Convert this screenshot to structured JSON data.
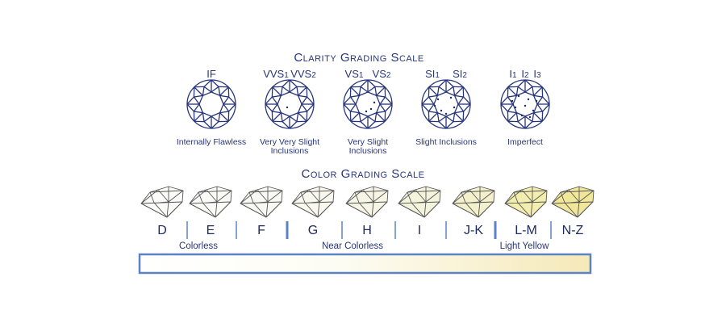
{
  "clarity": {
    "title": "Clarity Grading Scale",
    "grades": [
      {
        "labels": [
          {
            "text": "IF"
          }
        ],
        "description": [
          "Internally Flawless"
        ]
      },
      {
        "labels": [
          {
            "text": "VVS",
            "sub": "1"
          },
          {
            "text": "VVS",
            "sub": "2"
          }
        ],
        "description": [
          "Very Very Slight",
          "Inclusions"
        ]
      },
      {
        "labels": [
          {
            "text": "VS",
            "sub": "1"
          },
          {
            "text": "VS",
            "sub": "2"
          }
        ],
        "description": [
          "Very Slight",
          "Inclusions"
        ]
      },
      {
        "labels": [
          {
            "text": "SI",
            "sub": "1"
          },
          {
            "text": "SI",
            "sub": "2"
          }
        ],
        "description": [
          "Slight Inclusions"
        ]
      },
      {
        "labels": [
          {
            "text": "I",
            "sub": "1"
          },
          {
            "text": "I",
            "sub": "2"
          },
          {
            "text": "I",
            "sub": "3"
          }
        ],
        "description": [
          "Imperfect"
        ]
      }
    ]
  },
  "color": {
    "title": "Color Grading Scale",
    "grades": [
      {
        "label": "D",
        "color": "#fbfbf9"
      },
      {
        "label": "E",
        "color": "#fafaf6"
      },
      {
        "label": "F",
        "color": "#f9f9f3"
      },
      {
        "label": "G",
        "color": "#f8f8ee"
      },
      {
        "label": "H",
        "color": "#f6f5e6"
      },
      {
        "label": "I",
        "color": "#f4f3dc"
      },
      {
        "label": "J-K",
        "color": "#f3f0cc"
      },
      {
        "label": "L-M",
        "color": "#f3eeb0"
      },
      {
        "label": "N-Z",
        "color": "#f1e79a"
      }
    ],
    "groups": [
      "Colorless",
      "Near Colorless",
      "Light Yellow"
    ]
  }
}
